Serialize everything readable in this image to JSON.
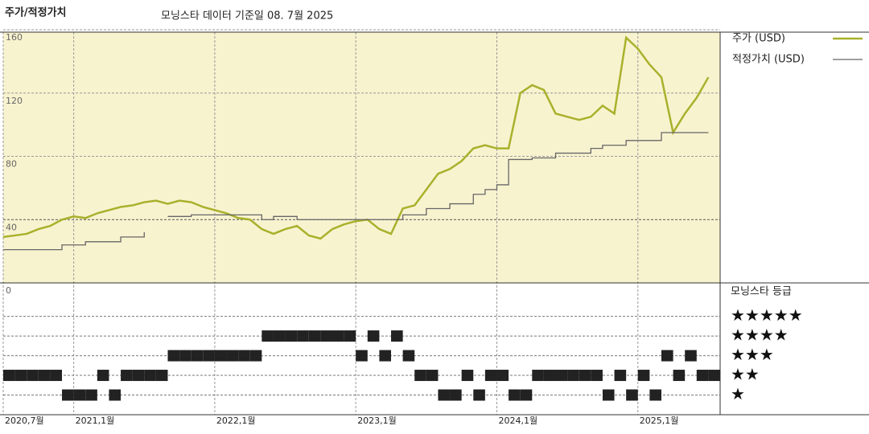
{
  "chart_data": [
    {
      "type": "line",
      "title": "주가/적정가치",
      "subtitle": "모닝스타 데이터 기준일 08. 7월 2025",
      "x": [
        "2020-07",
        "2020-08",
        "2020-09",
        "2020-10",
        "2020-11",
        "2020-12",
        "2021-01",
        "2021-02",
        "2021-03",
        "2021-04",
        "2021-05",
        "2021-06",
        "2021-07",
        "2021-08",
        "2021-09",
        "2021-10",
        "2021-11",
        "2021-12",
        "2022-01",
        "2022-02",
        "2022-03",
        "2022-04",
        "2022-05",
        "2022-06",
        "2022-07",
        "2022-08",
        "2022-09",
        "2022-10",
        "2022-11",
        "2022-12",
        "2023-01",
        "2023-02",
        "2023-03",
        "2023-04",
        "2023-05",
        "2023-06",
        "2023-07",
        "2023-08",
        "2023-09",
        "2023-10",
        "2023-11",
        "2023-12",
        "2024-01",
        "2024-02",
        "2024-03",
        "2024-04",
        "2024-05",
        "2024-06",
        "2024-07",
        "2024-08",
        "2024-09",
        "2024-10",
        "2024-11",
        "2024-12",
        "2025-01",
        "2025-02",
        "2025-03",
        "2025-04",
        "2025-05",
        "2025-06",
        "2025-07"
      ],
      "series": [
        {
          "name": "주가 (USD)",
          "color": "#a9b12c",
          "values": [
            29,
            30,
            31,
            34,
            36,
            40,
            42,
            41,
            44,
            46,
            48,
            49,
            51,
            52,
            50,
            52,
            51,
            48,
            46,
            44,
            41,
            40,
            34,
            31,
            34,
            36,
            30,
            28,
            34,
            37,
            39,
            40,
            34,
            31,
            47,
            49,
            59,
            69,
            72,
            77,
            85,
            87,
            85,
            85,
            120,
            125,
            122,
            107,
            105,
            103,
            105,
            112,
            107,
            155,
            148,
            138,
            130,
            95,
            107,
            117,
            130
          ]
        },
        {
          "name": "적정가치 (USD)",
          "color": "#666666",
          "values": [
            21,
            21,
            21,
            21,
            21,
            24,
            24,
            26,
            26,
            26,
            29,
            29,
            32,
            null,
            42,
            42,
            43,
            43,
            43,
            43,
            43,
            43,
            40,
            42,
            42,
            40,
            40,
            40,
            40,
            40,
            40,
            40,
            40,
            40,
            43,
            43,
            47,
            47,
            50,
            50,
            56,
            59,
            62,
            78,
            78,
            79,
            79,
            82,
            82,
            82,
            85,
            87,
            87,
            90,
            90,
            90,
            95,
            95,
            95,
            95,
            95
          ]
        }
      ],
      "xlim": [
        "2020-07",
        "2025-08"
      ],
      "xticks": [
        {
          "value": "2020-07",
          "label": "2020,7월"
        },
        {
          "value": "2021-01",
          "label": "2021,1월"
        },
        {
          "value": "2022-01",
          "label": "2022,1월"
        },
        {
          "value": "2023-01",
          "label": "2023,1월"
        },
        {
          "value": "2024-01",
          "label": "2024,1월"
        },
        {
          "value": "2025-01",
          "label": "2025,1월"
        }
      ],
      "ylim": [
        0,
        160
      ],
      "yticks": [
        0,
        40,
        80,
        120,
        160
      ],
      "background": "#f8f3cf"
    },
    {
      "type": "rating",
      "title": "모닝스타 등급",
      "color": "#222222",
      "values": [
        2,
        2,
        2,
        2,
        2,
        1,
        1,
        1,
        2,
        1,
        2,
        2,
        2,
        2,
        3,
        3,
        3,
        3,
        3,
        3,
        3,
        3,
        4,
        4,
        4,
        4,
        4,
        4,
        4,
        4,
        3,
        4,
        3,
        4,
        3,
        2,
        2,
        1,
        1,
        2,
        1,
        2,
        2,
        1,
        1,
        2,
        2,
        2,
        2,
        2,
        2,
        1,
        2,
        1,
        2,
        1,
        3,
        2,
        3,
        2,
        2
      ],
      "ylim": [
        0,
        6.7
      ],
      "yticks": [
        {
          "value": 5,
          "label": "★★★★★"
        },
        {
          "value": 4,
          "label": "★★★★"
        },
        {
          "value": 3,
          "label": "★★★"
        },
        {
          "value": 2,
          "label": "★★"
        },
        {
          "value": 1,
          "label": "★"
        }
      ]
    }
  ]
}
